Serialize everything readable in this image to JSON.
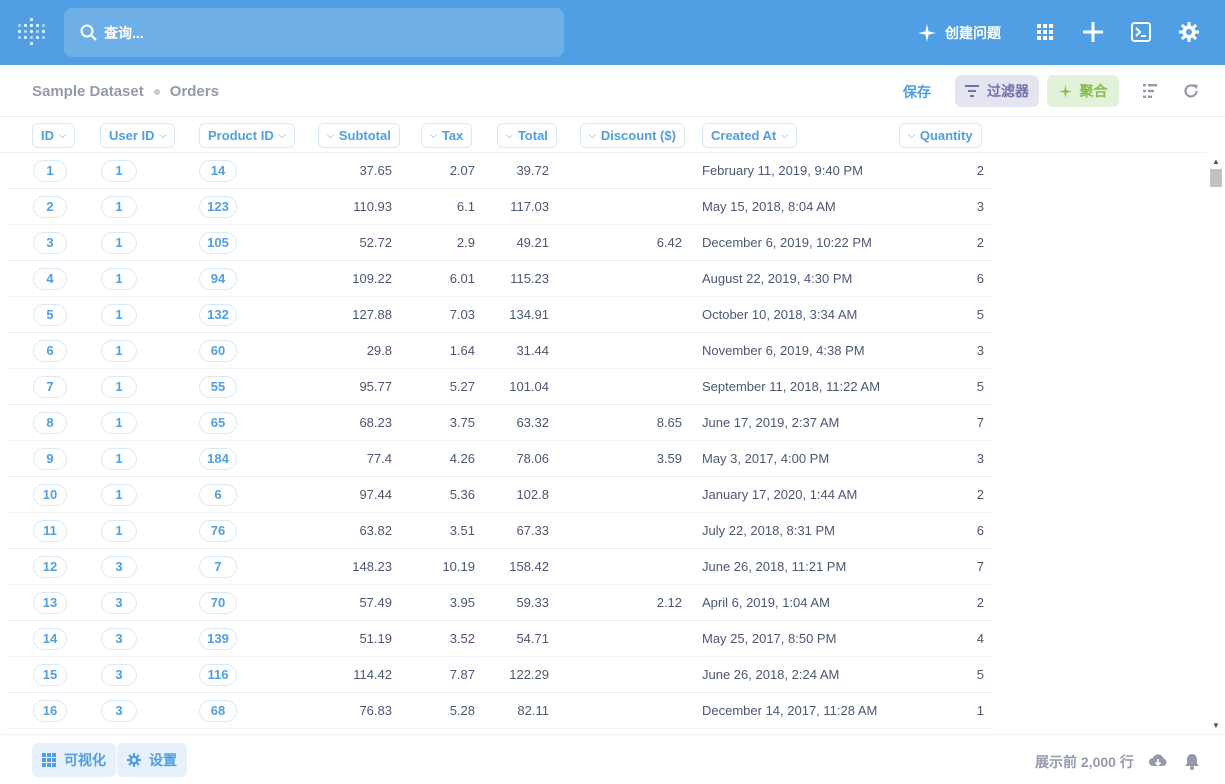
{
  "nav": {
    "search_placeholder": "查询...",
    "new_question_label": "创建问题",
    "icons": [
      "metabase-logo-icon",
      "search-icon",
      "sparkle-icon",
      "grid-icon",
      "plus-icon",
      "terminal-icon",
      "gear-icon"
    ],
    "accent": "#509ee3"
  },
  "header": {
    "dataset": "Sample Dataset",
    "table": "Orders",
    "save_label": "保存",
    "filter_label": "过滤器",
    "summarize_label": "聚合"
  },
  "columns": [
    "ID",
    "User ID",
    "Product ID",
    "Subtotal",
    "Tax",
    "Total",
    "Discount ($)",
    "Created At",
    "Quantity"
  ],
  "rows": [
    {
      "id": "1",
      "user_id": "1",
      "product_id": "14",
      "subtotal": "37.65",
      "tax": "2.07",
      "total": "39.72",
      "discount": "",
      "created_at": "February 11, 2019, 9:40 PM",
      "quantity": "2"
    },
    {
      "id": "2",
      "user_id": "1",
      "product_id": "123",
      "subtotal": "110.93",
      "tax": "6.1",
      "total": "117.03",
      "discount": "",
      "created_at": "May 15, 2018, 8:04 AM",
      "quantity": "3"
    },
    {
      "id": "3",
      "user_id": "1",
      "product_id": "105",
      "subtotal": "52.72",
      "tax": "2.9",
      "total": "49.21",
      "discount": "6.42",
      "created_at": "December 6, 2019, 10:22 PM",
      "quantity": "2"
    },
    {
      "id": "4",
      "user_id": "1",
      "product_id": "94",
      "subtotal": "109.22",
      "tax": "6.01",
      "total": "115.23",
      "discount": "",
      "created_at": "August 22, 2019, 4:30 PM",
      "quantity": "6"
    },
    {
      "id": "5",
      "user_id": "1",
      "product_id": "132",
      "subtotal": "127.88",
      "tax": "7.03",
      "total": "134.91",
      "discount": "",
      "created_at": "October 10, 2018, 3:34 AM",
      "quantity": "5"
    },
    {
      "id": "6",
      "user_id": "1",
      "product_id": "60",
      "subtotal": "29.8",
      "tax": "1.64",
      "total": "31.44",
      "discount": "",
      "created_at": "November 6, 2019, 4:38 PM",
      "quantity": "3"
    },
    {
      "id": "7",
      "user_id": "1",
      "product_id": "55",
      "subtotal": "95.77",
      "tax": "5.27",
      "total": "101.04",
      "discount": "",
      "created_at": "September 11, 2018, 11:22 AM",
      "quantity": "5"
    },
    {
      "id": "8",
      "user_id": "1",
      "product_id": "65",
      "subtotal": "68.23",
      "tax": "3.75",
      "total": "63.32",
      "discount": "8.65",
      "created_at": "June 17, 2019, 2:37 AM",
      "quantity": "7"
    },
    {
      "id": "9",
      "user_id": "1",
      "product_id": "184",
      "subtotal": "77.4",
      "tax": "4.26",
      "total": "78.06",
      "discount": "3.59",
      "created_at": "May 3, 2017, 4:00 PM",
      "quantity": "3"
    },
    {
      "id": "10",
      "user_id": "1",
      "product_id": "6",
      "subtotal": "97.44",
      "tax": "5.36",
      "total": "102.8",
      "discount": "",
      "created_at": "January 17, 2020, 1:44 AM",
      "quantity": "2"
    },
    {
      "id": "11",
      "user_id": "1",
      "product_id": "76",
      "subtotal": "63.82",
      "tax": "3.51",
      "total": "67.33",
      "discount": "",
      "created_at": "July 22, 2018, 8:31 PM",
      "quantity": "6"
    },
    {
      "id": "12",
      "user_id": "3",
      "product_id": "7",
      "subtotal": "148.23",
      "tax": "10.19",
      "total": "158.42",
      "discount": "",
      "created_at": "June 26, 2018, 11:21 PM",
      "quantity": "7"
    },
    {
      "id": "13",
      "user_id": "3",
      "product_id": "70",
      "subtotal": "57.49",
      "tax": "3.95",
      "total": "59.33",
      "discount": "2.12",
      "created_at": "April 6, 2019, 1:04 AM",
      "quantity": "2"
    },
    {
      "id": "14",
      "user_id": "3",
      "product_id": "139",
      "subtotal": "51.19",
      "tax": "3.52",
      "total": "54.71",
      "discount": "",
      "created_at": "May 25, 2017, 8:50 PM",
      "quantity": "4"
    },
    {
      "id": "15",
      "user_id": "3",
      "product_id": "116",
      "subtotal": "114.42",
      "tax": "7.87",
      "total": "122.29",
      "discount": "",
      "created_at": "June 26, 2018, 2:24 AM",
      "quantity": "5"
    },
    {
      "id": "16",
      "user_id": "3",
      "product_id": "68",
      "subtotal": "76.83",
      "tax": "5.28",
      "total": "82.11",
      "discount": "",
      "created_at": "December 14, 2017, 11:28 AM",
      "quantity": "1"
    }
  ],
  "footer": {
    "visualize_label": "可视化",
    "settings_label": "设置",
    "row_count_label": "展示前 2,000 行"
  }
}
